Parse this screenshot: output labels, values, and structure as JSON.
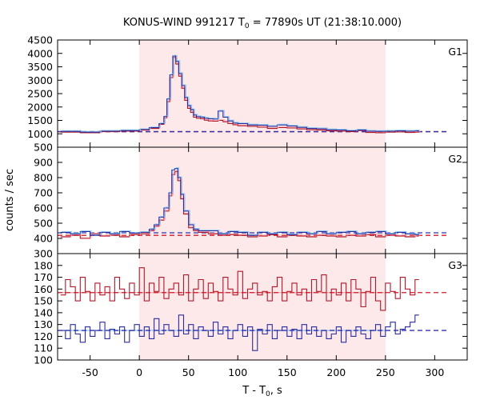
{
  "chart_data": {
    "type": "line",
    "title_main": "KONUS-WIND 991217 T",
    "title_sub": "0",
    "title_rest": " = 77890s UT (21:38:10.000)",
    "xlabel_main": "T - T",
    "xlabel_sub": "0",
    "xlabel_rest": ", s",
    "ylabel": "counts / sec",
    "xlim": [
      -83,
      333
    ],
    "xticks": [
      -50,
      0,
      50,
      100,
      150,
      200,
      250,
      300
    ],
    "highlight_interval": [
      0,
      250
    ],
    "colors": {
      "series_red": "#b2182b",
      "series_blue": "#2c2ca0",
      "background_fit_red": "#d01c2c",
      "background_fit_blue": "#3030b0",
      "light_blue": "#74c2f0",
      "light_red": "#f4a0a0",
      "highlight": "#fde8ea"
    },
    "panels": [
      {
        "label": "G1",
        "ylim": [
          500,
          4500
        ],
        "yticks": [
          500,
          1000,
          1500,
          2000,
          2500,
          3000,
          3500,
          4000,
          4500
        ],
        "bg_level": 1080,
        "series": [
          {
            "color": "red",
            "x": [
              -80,
              -60,
              -40,
              -20,
              0,
              10,
              20,
              25,
              28,
              31,
              34,
              37,
              40,
              43,
              46,
              49,
              52,
              55,
              58,
              62,
              66,
              70,
              75,
              80,
              85,
              90,
              95,
              100,
              110,
              120,
              130,
              140,
              150,
              160,
              170,
              180,
              190,
              200,
              210,
              220,
              230,
              240,
              250,
              260,
              270,
              280
            ],
            "y": [
              1060,
              1040,
              1080,
              1100,
              1140,
              1200,
              1350,
              1600,
              2200,
              3100,
              3850,
              3600,
              3150,
              2700,
              2250,
              1950,
              1800,
              1620,
              1580,
              1560,
              1510,
              1480,
              1470,
              1500,
              1450,
              1380,
              1340,
              1300,
              1280,
              1250,
              1200,
              1230,
              1220,
              1180,
              1150,
              1140,
              1110,
              1100,
              1080,
              1120,
              1050,
              1040,
              1060,
              1070,
              1050,
              1060
            ]
          },
          {
            "color": "blue",
            "x": [
              -80,
              -60,
              -40,
              -20,
              0,
              10,
              20,
              25,
              28,
              31,
              34,
              37,
              40,
              43,
              46,
              49,
              52,
              55,
              58,
              62,
              66,
              70,
              75,
              80,
              85,
              90,
              95,
              100,
              110,
              120,
              130,
              140,
              150,
              160,
              170,
              180,
              190,
              200,
              210,
              220,
              230,
              240,
              250,
              260,
              270,
              280
            ],
            "y": [
              1090,
              1060,
              1100,
              1120,
              1160,
              1230,
              1380,
              1650,
              2300,
              3200,
              3900,
              3700,
              3250,
              2800,
              2350,
              2050,
              1900,
              1700,
              1640,
              1620,
              1580,
              1560,
              1550,
              1850,
              1620,
              1480,
              1400,
              1380,
              1330,
              1320,
              1280,
              1330,
              1290,
              1240,
              1200,
              1190,
              1150,
              1140,
              1110,
              1140,
              1100,
              1090,
              1100,
              1110,
              1100,
              1110
            ]
          }
        ]
      },
      {
        "label": "G2",
        "ylim": [
          300,
          1000
        ],
        "yticks": [
          300,
          400,
          500,
          600,
          700,
          800,
          900
        ],
        "bg_level_red": 420,
        "bg_level_blue": 437,
        "series": [
          {
            "color": "red",
            "x": [
              -80,
              -70,
              -60,
              -50,
              -40,
              -30,
              -20,
              -10,
              0,
              10,
              15,
              20,
              25,
              30,
              33,
              36,
              39,
              42,
              45,
              50,
              55,
              60,
              70,
              80,
              90,
              100,
              110,
              120,
              130,
              140,
              150,
              160,
              170,
              180,
              190,
              200,
              210,
              220,
              230,
              240,
              250,
              260,
              270,
              280
            ],
            "y": [
              410,
              420,
              400,
              430,
              415,
              420,
              410,
              425,
              430,
              450,
              480,
              520,
              580,
              680,
              820,
              840,
              780,
              660,
              560,
              470,
              450,
              440,
              430,
              420,
              425,
              420,
              410,
              415,
              425,
              410,
              420,
              415,
              410,
              420,
              415,
              410,
              420,
              415,
              425,
              410,
              420,
              415,
              410,
              415
            ]
          },
          {
            "color": "blue",
            "x": [
              -80,
              -70,
              -60,
              -50,
              -40,
              -30,
              -20,
              -10,
              0,
              10,
              15,
              20,
              25,
              30,
              33,
              36,
              39,
              42,
              45,
              50,
              55,
              60,
              70,
              80,
              90,
              100,
              110,
              120,
              130,
              140,
              150,
              160,
              170,
              180,
              190,
              200,
              210,
              220,
              230,
              240,
              250,
              260,
              270,
              280
            ],
            "y": [
              440,
              430,
              445,
              420,
              440,
              430,
              445,
              435,
              440,
              460,
              490,
              540,
              600,
              700,
              850,
              860,
              800,
              690,
              580,
              490,
              460,
              450,
              450,
              430,
              445,
              440,
              420,
              440,
              430,
              440,
              425,
              440,
              430,
              445,
              430,
              440,
              445,
              430,
              440,
              445,
              430,
              440,
              430,
              425
            ]
          }
        ]
      },
      {
        "label": "G3",
        "ylim": [
          100,
          190
        ],
        "yticks": [
          100,
          110,
          120,
          130,
          140,
          150,
          160,
          170,
          180
        ],
        "bg_level_red": 157,
        "bg_level_blue": 125,
        "series": [
          {
            "color": "red",
            "x": [
              -80,
              -75,
              -70,
              -65,
              -60,
              -55,
              -50,
              -45,
              -40,
              -35,
              -30,
              -25,
              -20,
              -15,
              -10,
              -5,
              0,
              5,
              10,
              15,
              20,
              25,
              30,
              35,
              40,
              45,
              50,
              55,
              60,
              65,
              70,
              75,
              80,
              85,
              90,
              95,
              100,
              105,
              110,
              115,
              120,
              125,
              130,
              135,
              140,
              145,
              150,
              155,
              160,
              165,
              170,
              175,
              180,
              185,
              190,
              195,
              200,
              205,
              210,
              215,
              220,
              225,
              230,
              235,
              240,
              245,
              250,
              255,
              260,
              265,
              270,
              275,
              280
            ],
            "y": [
              155,
              168,
              162,
              150,
              170,
              158,
              150,
              165,
              155,
              162,
              150,
              170,
              160,
              152,
              165,
              155,
              178,
              150,
              165,
              158,
              170,
              152,
              160,
              165,
              155,
              172,
              150,
              160,
              168,
              152,
              165,
              158,
              150,
              170,
              160,
              155,
              175,
              152,
              160,
              165,
              155,
              158,
              150,
              162,
              170,
              150,
              158,
              165,
              155,
              160,
              150,
              168,
              158,
              172,
              150,
              160,
              155,
              165,
              150,
              168,
              160,
              145,
              158,
              170,
              150,
              142,
              165,
              158,
              152,
              170,
              160,
              155,
              168
            ]
          },
          {
            "color": "blue",
            "x": [
              -80,
              -75,
              -70,
              -65,
              -60,
              -55,
              -50,
              -45,
              -40,
              -35,
              -30,
              -25,
              -20,
              -15,
              -10,
              -5,
              0,
              5,
              10,
              15,
              20,
              25,
              30,
              35,
              40,
              45,
              50,
              55,
              60,
              65,
              70,
              75,
              80,
              85,
              90,
              95,
              100,
              105,
              110,
              115,
              120,
              125,
              130,
              135,
              140,
              145,
              150,
              155,
              160,
              165,
              170,
              175,
              180,
              185,
              190,
              195,
              200,
              205,
              210,
              215,
              220,
              225,
              230,
              235,
              240,
              245,
              250,
              255,
              260,
              265,
              270,
              275,
              280
            ],
            "y": [
              125,
              118,
              130,
              122,
              115,
              128,
              120,
              125,
              132,
              118,
              126,
              122,
              128,
              115,
              125,
              130,
              120,
              128,
              118,
              135,
              122,
              130,
              125,
              120,
              138,
              122,
              130,
              118,
              128,
              125,
              120,
              132,
              122,
              128,
              118,
              125,
              130,
              120,
              128,
              108,
              126,
              122,
              130,
              118,
              125,
              128,
              120,
              126,
              118,
              130,
              122,
              128,
              120,
              125,
              118,
              122,
              128,
              115,
              125,
              120,
              128,
              122,
              118,
              125,
              130,
              120,
              128,
              132,
              122,
              126,
              128,
              132,
              138
            ]
          }
        ]
      }
    ]
  }
}
